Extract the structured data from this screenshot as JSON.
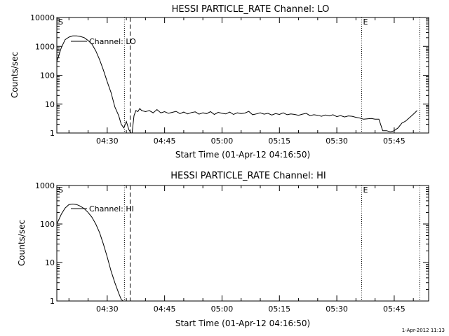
{
  "chart_data": [
    {
      "type": "line",
      "title": "HESSI PARTICLE_RATE Channel: LO",
      "xlabel": "Start Time (01-Apr-12 04:16:50)",
      "ylabel": "Counts/sec",
      "yscale": "log",
      "ylim": [
        1,
        10000
      ],
      "xlim": [
        "04:16:50",
        "05:54:00"
      ],
      "grid": false,
      "xtick_labels": [
        "04:30",
        "04:45",
        "05:00",
        "05:15",
        "05:30",
        "05:45"
      ],
      "ytick_labels": [
        "1",
        "10",
        "100",
        "1000",
        "10000"
      ],
      "legend": {
        "label": "Channel: LO",
        "position": "top-left"
      },
      "markers": [
        {
          "label": "S",
          "time": "04:16:50",
          "style": "dotted"
        },
        {
          "label": "",
          "time": "04:34:30",
          "style": "dotted"
        },
        {
          "label": "",
          "time": "04:36:00",
          "style": "dashed"
        },
        {
          "label": "E",
          "time": "05:36:30",
          "style": "dotted"
        },
        {
          "label": "",
          "time": "05:51:40",
          "style": "dotted"
        }
      ],
      "series": [
        {
          "name": "Channel: LO",
          "x": [
            "04:16:50",
            "04:18:00",
            "04:19:00",
            "04:20:00",
            "04:21:00",
            "04:22:00",
            "04:23:00",
            "04:24:00",
            "04:25:00",
            "04:26:00",
            "04:27:00",
            "04:28:00",
            "04:29:00",
            "04:30:00",
            "04:31:00",
            "04:32:00",
            "04:33:00",
            "04:33:40",
            "04:34:20",
            "04:35:00",
            "04:35:40",
            "04:36:10",
            "04:36:30",
            "04:37:00",
            "04:37:30",
            "04:38:00",
            "04:38:30",
            "04:39:00",
            "04:40:00",
            "04:41:00",
            "04:42:00",
            "04:43:00",
            "04:44:00",
            "04:45:00",
            "04:46:00",
            "04:47:00",
            "04:48:00",
            "04:49:00",
            "04:50:00",
            "04:51:00",
            "04:52:00",
            "04:53:00",
            "04:54:00",
            "04:55:00",
            "04:56:00",
            "04:57:00",
            "04:58:00",
            "04:59:00",
            "05:00:00",
            "05:01:00",
            "05:02:00",
            "05:03:00",
            "05:04:00",
            "05:05:00",
            "05:06:00",
            "05:07:00",
            "05:08:00",
            "05:09:00",
            "05:10:00",
            "05:11:00",
            "05:12:00",
            "05:13:00",
            "05:14:00",
            "05:15:00",
            "05:16:00",
            "05:17:00",
            "05:18:00",
            "05:19:00",
            "05:20:00",
            "05:21:00",
            "05:22:00",
            "05:23:00",
            "05:24:00",
            "05:25:00",
            "05:26:00",
            "05:27:00",
            "05:28:00",
            "05:29:00",
            "05:30:00",
            "05:31:00",
            "05:32:00",
            "05:33:00",
            "05:34:00",
            "05:35:00",
            "05:36:00",
            "05:37:00",
            "05:38:00",
            "05:39:00",
            "05:40:00",
            "05:41:00",
            "05:42:00",
            "05:43:00",
            "05:44:00",
            "05:45:00",
            "05:46:00",
            "05:47:00",
            "05:48:00",
            "05:49:00",
            "05:50:00",
            "05:51:00"
          ],
          "y": [
            300,
            900,
            1700,
            2100,
            2300,
            2300,
            2200,
            2000,
            1600,
            1200,
            700,
            350,
            150,
            60,
            25,
            8,
            4,
            2,
            1.5,
            2.5,
            1.3,
            1.0,
            1.0,
            4,
            6,
            5.5,
            7,
            6,
            5.5,
            6,
            5,
            6.5,
            5,
            5.5,
            4.8,
            5.2,
            5.6,
            4.7,
            5.3,
            4.6,
            5.1,
            5.4,
            4.5,
            5.0,
            4.7,
            5.5,
            4.4,
            5.2,
            4.8,
            4.6,
            5.3,
            4.4,
            5.0,
            4.7,
            4.9,
            5.6,
            4.3,
            4.6,
            5.0,
            4.5,
            4.8,
            4.2,
            4.7,
            4.4,
            5.0,
            4.3,
            4.6,
            4.4,
            4.1,
            4.5,
            4.8,
            4.0,
            4.3,
            4.1,
            3.8,
            4.2,
            3.9,
            4.3,
            3.7,
            4.0,
            3.6,
            3.9,
            3.8,
            3.5,
            3.3,
            3.0,
            3.1,
            3.2,
            3.0,
            3.0,
            1.2,
            1.2,
            1.1,
            1.2,
            1.5,
            2.2,
            2.6,
            3.4,
            4.5,
            6.0
          ]
        }
      ]
    },
    {
      "type": "line",
      "title": "HESSI PARTICLE_RATE Channel: HI",
      "xlabel": "Start Time (01-Apr-12 04:16:50)",
      "ylabel": "Counts/sec",
      "yscale": "log",
      "ylim": [
        1,
        1000
      ],
      "xlim": [
        "04:16:50",
        "05:54:00"
      ],
      "grid": false,
      "xtick_labels": [
        "04:30",
        "04:45",
        "05:00",
        "05:15",
        "05:30",
        "05:45"
      ],
      "ytick_labels": [
        "1",
        "10",
        "100",
        "1000"
      ],
      "legend": {
        "label": "Channel: HI",
        "position": "top-left"
      },
      "markers": [
        {
          "label": "S",
          "time": "04:16:50",
          "style": "dotted"
        },
        {
          "label": "",
          "time": "04:34:30",
          "style": "dotted"
        },
        {
          "label": "",
          "time": "04:36:00",
          "style": "dashed"
        },
        {
          "label": "E",
          "time": "05:36:30",
          "style": "dotted"
        },
        {
          "label": "",
          "time": "05:51:40",
          "style": "dotted"
        }
      ],
      "series": [
        {
          "name": "Channel: HI",
          "x": [
            "04:16:50",
            "04:18:00",
            "04:19:00",
            "04:20:00",
            "04:21:00",
            "04:22:00",
            "04:23:00",
            "04:24:00",
            "04:25:00",
            "04:26:00",
            "04:27:00",
            "04:28:00",
            "04:29:00",
            "04:30:00",
            "04:31:00",
            "04:32:00",
            "04:33:00",
            "04:33:40",
            "04:34:10"
          ],
          "y": [
            100,
            180,
            260,
            320,
            330,
            320,
            290,
            250,
            200,
            150,
            100,
            60,
            30,
            14,
            6,
            3,
            1.6,
            1.1,
            1.0
          ]
        }
      ]
    }
  ],
  "footer": {
    "timestamp": "1-Apr-2012 11:13"
  }
}
